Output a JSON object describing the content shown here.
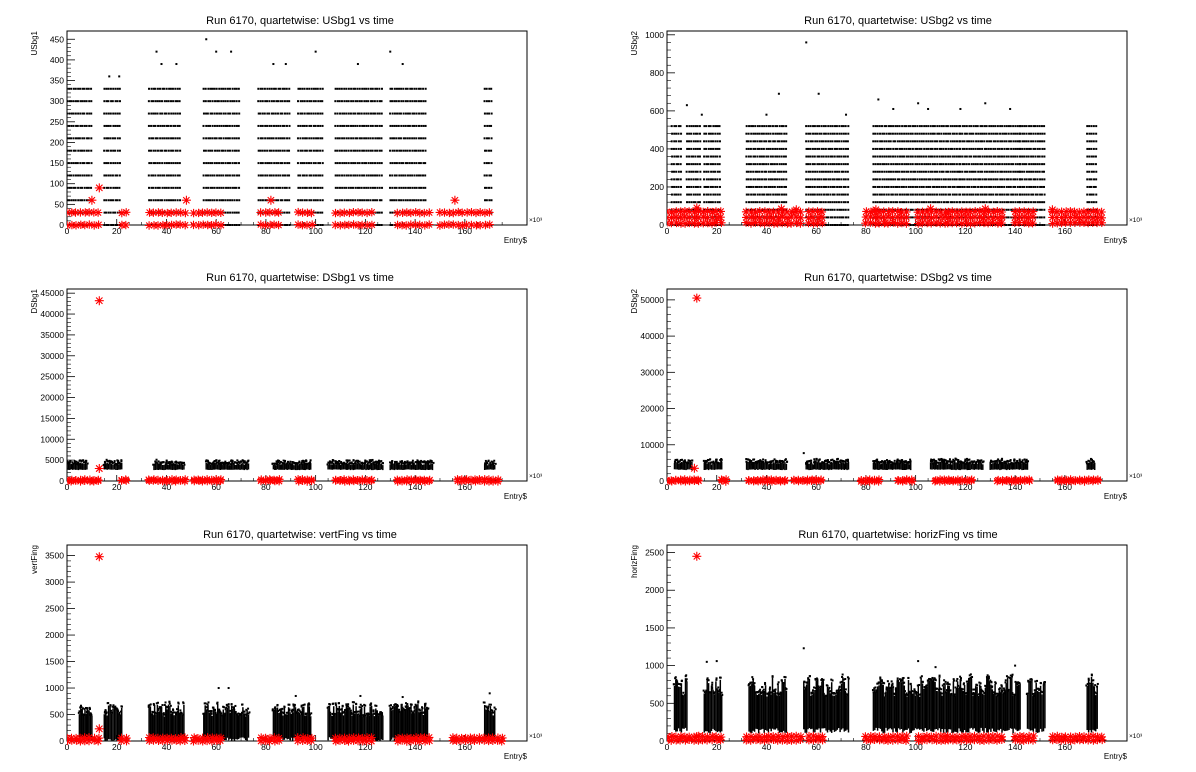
{
  "chart_data": [
    {
      "type": "scatter",
      "title": "Run 6170, quartetwise: USbg1 vs time",
      "xlabel": "Entry$",
      "ylabel": "USbg1",
      "x_exponent": "×10³",
      "xlim": [
        0,
        185
      ],
      "ylim": [
        0,
        470
      ],
      "xticks": [
        0,
        20,
        40,
        60,
        80,
        100,
        120,
        140,
        160
      ],
      "yticks": [
        0,
        50,
        100,
        150,
        200,
        250,
        300,
        350,
        400,
        450
      ],
      "series": [
        {
          "color": "#000000",
          "marker": "dot",
          "segments": [
            [
              0,
              10
            ],
            [
              15,
              22
            ],
            [
              33,
              46
            ],
            [
              55,
              70
            ],
            [
              77,
              90
            ],
            [
              93,
              103
            ],
            [
              108,
              127
            ],
            [
              130,
              145
            ],
            [
              168,
              171
            ]
          ],
          "levels": [
            0,
            30,
            60,
            90,
            120,
            150,
            180,
            210,
            240,
            270,
            300,
            330
          ],
          "outliers": [
            [
              17,
              360
            ],
            [
              21,
              360
            ],
            [
              36,
              420
            ],
            [
              38,
              390
            ],
            [
              44,
              390
            ],
            [
              56,
              450
            ],
            [
              60,
              420
            ],
            [
              66,
              420
            ],
            [
              83,
              390
            ],
            [
              88,
              390
            ],
            [
              100,
              420
            ],
            [
              117,
              390
            ],
            [
              130,
              420
            ],
            [
              135,
              390
            ]
          ]
        },
        {
          "color": "#ff0000",
          "marker": "star",
          "segments": [
            [
              0,
              14
            ],
            [
              22,
              25
            ],
            [
              33,
              48
            ],
            [
              51,
              63
            ],
            [
              78,
              87
            ],
            [
              93,
              100
            ],
            [
              108,
              124
            ],
            [
              133,
              146
            ],
            [
              150,
              170
            ]
          ],
          "levels": [
            0,
            30
          ],
          "outliers": [
            [
              13,
              90
            ],
            [
              10,
              60
            ],
            [
              48,
              60
            ],
            [
              82,
              60
            ],
            [
              156,
              60
            ]
          ]
        }
      ]
    },
    {
      "type": "scatter",
      "title": "Run 6170, quartetwise: USbg2 vs time",
      "xlabel": "Entry$",
      "ylabel": "USbg2",
      "x_exponent": "×10³",
      "xlim": [
        0,
        185
      ],
      "ylim": [
        0,
        1020
      ],
      "xticks": [
        0,
        20,
        40,
        60,
        80,
        100,
        120,
        140,
        160
      ],
      "yticks": [
        0,
        200,
        400,
        600,
        800,
        1000
      ],
      "series": [
        {
          "color": "#000000",
          "marker": "dot",
          "segments": [
            [
              2,
              6
            ],
            [
              8,
              14
            ],
            [
              15,
              22
            ],
            [
              32,
              48
            ],
            [
              56,
              73
            ],
            [
              83,
              118
            ],
            [
              118,
              142
            ],
            [
              142,
              152
            ],
            [
              169,
              173
            ]
          ],
          "levels": [
            0,
            40,
            80,
            120,
            160,
            200,
            240,
            280,
            320,
            360,
            400,
            440,
            480,
            520
          ],
          "outliers": [
            [
              8,
              630
            ],
            [
              14,
              580
            ],
            [
              40,
              580
            ],
            [
              45,
              690
            ],
            [
              56,
              960
            ],
            [
              61,
              690
            ],
            [
              72,
              580
            ],
            [
              85,
              660
            ],
            [
              91,
              610
            ],
            [
              101,
              640
            ],
            [
              105,
              610
            ],
            [
              118,
              610
            ],
            [
              128,
              640
            ],
            [
              138,
              610
            ]
          ]
        },
        {
          "color": "#ff0000",
          "marker": "star",
          "segments": [
            [
              0,
              22
            ],
            [
              32,
              55
            ],
            [
              57,
              63
            ],
            [
              80,
              98
            ],
            [
              101,
              113
            ],
            [
              113,
              136
            ],
            [
              140,
              148
            ],
            [
              155,
              175
            ]
          ],
          "levels": [
            10,
            40,
            70
          ],
          "outliers": [
            [
              12,
              90
            ],
            [
              46,
              85
            ],
            [
              52,
              80
            ],
            [
              84,
              80
            ],
            [
              106,
              85
            ],
            [
              128,
              85
            ],
            [
              155,
              80
            ]
          ]
        }
      ]
    },
    {
      "type": "scatter",
      "title": "Run 6170, quartetwise: DSbg1 vs time",
      "xlabel": "Entry$",
      "ylabel": "DSbg1",
      "x_exponent": "×10³",
      "xlim": [
        0,
        185
      ],
      "ylim": [
        0,
        46000
      ],
      "xticks": [
        0,
        20,
        40,
        60,
        80,
        100,
        120,
        140,
        160
      ],
      "yticks": [
        0,
        5000,
        10000,
        15000,
        20000,
        25000,
        30000,
        35000,
        40000,
        45000
      ],
      "series": [
        {
          "color": "#000000",
          "marker": "band",
          "segments": [
            [
              0,
              8
            ],
            [
              15,
              22
            ],
            [
              35,
              47
            ],
            [
              56,
              73
            ],
            [
              83,
              98
            ],
            [
              105,
              127
            ],
            [
              130,
              147
            ],
            [
              168,
              172
            ]
          ],
          "band": [
            2600,
            4400
          ],
          "outliers": [
            [
              60,
              4900
            ],
            [
              66,
              4800
            ],
            [
              95,
              4600
            ]
          ]
        },
        {
          "color": "#ff0000",
          "marker": "star",
          "segments": [
            [
              0,
              14
            ],
            [
              22,
              25
            ],
            [
              33,
              48
            ],
            [
              51,
              63
            ],
            [
              78,
              87
            ],
            [
              93,
              100
            ],
            [
              108,
              124
            ],
            [
              133,
              146
            ],
            [
              157,
              175
            ]
          ],
          "levels": [
            0,
            300
          ],
          "outliers": [
            [
              13,
              43200
            ],
            [
              13,
              3000
            ]
          ]
        }
      ]
    },
    {
      "type": "scatter",
      "title": "Run 6170, quartetwise: DSbg2 vs time",
      "xlabel": "Entry$",
      "ylabel": "DSbg2",
      "x_exponent": "×10³",
      "xlim": [
        0,
        185
      ],
      "ylim": [
        0,
        53000
      ],
      "xticks": [
        0,
        20,
        40,
        60,
        80,
        100,
        120,
        140,
        160
      ],
      "yticks": [
        0,
        10000,
        20000,
        30000,
        40000,
        50000
      ],
      "series": [
        {
          "color": "#000000",
          "marker": "band",
          "segments": [
            [
              3,
              10
            ],
            [
              15,
              22
            ],
            [
              32,
              48
            ],
            [
              56,
              73
            ],
            [
              83,
              98
            ],
            [
              106,
              127
            ],
            [
              130,
              145
            ],
            [
              169,
              172
            ]
          ],
          "band": [
            3000,
            5400
          ],
          "outliers": [
            [
              55,
              7700
            ],
            [
              20,
              5900
            ]
          ]
        },
        {
          "color": "#ff0000",
          "marker": "star",
          "segments": [
            [
              0,
              14
            ],
            [
              22,
              25
            ],
            [
              33,
              48
            ],
            [
              51,
              63
            ],
            [
              78,
              87
            ],
            [
              93,
              100
            ],
            [
              108,
              124
            ],
            [
              133,
              146
            ],
            [
              157,
              175
            ]
          ],
          "levels": [
            0,
            300
          ],
          "outliers": [
            [
              12,
              50500
            ],
            [
              11,
              3500
            ]
          ]
        }
      ]
    },
    {
      "type": "scatter",
      "title": "Run 6170, quartetwise: vertFing vs time",
      "xlabel": "Entry$",
      "ylabel": "vertFing",
      "x_exponent": "×10³",
      "xlim": [
        0,
        185
      ],
      "ylim": [
        0,
        3700
      ],
      "xticks": [
        0,
        20,
        40,
        60,
        80,
        100,
        120,
        140,
        160
      ],
      "yticks": [
        0,
        500,
        1000,
        1500,
        2000,
        2500,
        3000,
        3500
      ],
      "series": [
        {
          "color": "#000000",
          "marker": "band",
          "segments": [
            [
              5,
              10
            ],
            [
              15,
              22
            ],
            [
              33,
              47
            ],
            [
              55,
              73
            ],
            [
              83,
              98
            ],
            [
              105,
              127
            ],
            [
              130,
              145
            ],
            [
              168,
              172
            ]
          ],
          "band": [
            0,
            700
          ],
          "outliers": [
            [
              61,
              1000
            ],
            [
              65,
              1000
            ],
            [
              92,
              850
            ],
            [
              118,
              850
            ],
            [
              135,
              830
            ],
            [
              170,
              900
            ]
          ]
        },
        {
          "color": "#ff0000",
          "marker": "star",
          "segments": [
            [
              0,
              14
            ],
            [
              22,
              25
            ],
            [
              33,
              48
            ],
            [
              51,
              63
            ],
            [
              78,
              87
            ],
            [
              93,
              100
            ],
            [
              108,
              124
            ],
            [
              133,
              146
            ],
            [
              155,
              175
            ]
          ],
          "levels": [
            0,
            60
          ],
          "outliers": [
            [
              13,
              3480
            ],
            [
              13,
              230
            ]
          ]
        }
      ]
    },
    {
      "type": "scatter",
      "title": "Run 6170, quartetwise: horizFing vs time",
      "xlabel": "Entry$",
      "ylabel": "horizFing",
      "x_exponent": "×10³",
      "xlim": [
        0,
        185
      ],
      "ylim": [
        0,
        2600
      ],
      "xticks": [
        0,
        20,
        40,
        60,
        80,
        100,
        120,
        140,
        160
      ],
      "yticks": [
        0,
        500,
        1000,
        1500,
        2000,
        2500
      ],
      "series": [
        {
          "color": "#000000",
          "marker": "band",
          "segments": [
            [
              3,
              8
            ],
            [
              15,
              22
            ],
            [
              33,
              48
            ],
            [
              55,
              73
            ],
            [
              83,
              118
            ],
            [
              118,
              142
            ],
            [
              145,
              152
            ],
            [
              169,
              173
            ]
          ],
          "band": [
            100,
            850
          ],
          "outliers": [
            [
              16,
              1050
            ],
            [
              20,
              1060
            ],
            [
              55,
              1230
            ],
            [
              101,
              1060
            ],
            [
              108,
              980
            ],
            [
              140,
              1000
            ]
          ]
        },
        {
          "color": "#ff0000",
          "marker": "star",
          "segments": [
            [
              0,
              22
            ],
            [
              32,
              55
            ],
            [
              57,
              63
            ],
            [
              80,
              98
            ],
            [
              101,
              113
            ],
            [
              113,
              136
            ],
            [
              140,
              148
            ],
            [
              155,
              175
            ]
          ],
          "levels": [
            10,
            60
          ],
          "outliers": [
            [
              12,
              2450
            ],
            [
              12,
              60
            ]
          ]
        }
      ]
    }
  ]
}
